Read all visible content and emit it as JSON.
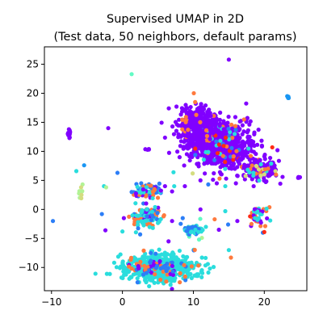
{
  "chart_data": {
    "type": "scatter",
    "title": "Supervised UMAP in 2D",
    "subtitle": "(Test data, 50 neighbors, default params)",
    "xlabel": "",
    "ylabel": "",
    "xlim": [
      -11,
      26
    ],
    "ylim": [
      -14,
      28
    ],
    "xticks": [
      -10,
      0,
      10,
      20
    ],
    "yticks": [
      -10,
      -5,
      0,
      5,
      10,
      15,
      20,
      25
    ],
    "grid": false,
    "legend": "none",
    "colormap": "rainbow",
    "class_colors": [
      "#8000ff",
      "#2c7ef7",
      "#1996f3",
      "#2adddd",
      "#62fbc4",
      "#b2f396",
      "#d4dd80",
      "#ffb360",
      "#ff7a3e",
      "#ff2a15"
    ],
    "clusters": [
      {
        "center": [
          13.5,
          11.5
        ],
        "spread": [
          2.6,
          2.0
        ],
        "angle": -35,
        "count": 900,
        "classes": [
          [
            0,
            0.93
          ],
          [
            8,
            0.02
          ],
          [
            3,
            0.02
          ],
          [
            1,
            0.02
          ],
          [
            9,
            0.01
          ]
        ]
      },
      {
        "center": [
          10.5,
          15.0
        ],
        "spread": [
          1.3,
          1.6
        ],
        "angle": 0,
        "count": 250,
        "classes": [
          [
            0,
            0.97
          ],
          [
            8,
            0.03
          ]
        ]
      },
      {
        "center": [
          19.5,
          6.8
        ],
        "spread": [
          1.2,
          0.8
        ],
        "angle": -10,
        "count": 200,
        "classes": [
          [
            0,
            0.9
          ],
          [
            8,
            0.04
          ],
          [
            6,
            0.03
          ],
          [
            3,
            0.03
          ]
        ]
      },
      {
        "center": [
          5.5,
          -10.0
        ],
        "spread": [
          2.4,
          1.1
        ],
        "angle": 0,
        "count": 700,
        "classes": [
          [
            3,
            0.88
          ],
          [
            1,
            0.05
          ],
          [
            8,
            0.04
          ],
          [
            0,
            0.03
          ]
        ]
      },
      {
        "center": [
          3.3,
          3.2
        ],
        "spread": [
          1.0,
          0.7
        ],
        "angle": 0,
        "count": 90,
        "classes": [
          [
            1,
            0.6
          ],
          [
            0,
            0.1
          ],
          [
            8,
            0.15
          ],
          [
            3,
            0.15
          ]
        ]
      },
      {
        "center": [
          3.4,
          -1.3
        ],
        "spread": [
          0.9,
          0.9
        ],
        "angle": 0,
        "count": 120,
        "classes": [
          [
            8,
            0.45
          ],
          [
            3,
            0.3
          ],
          [
            1,
            0.15
          ],
          [
            0,
            0.1
          ]
        ]
      },
      {
        "center": [
          10.0,
          -3.5
        ],
        "spread": [
          0.7,
          0.5
        ],
        "angle": 0,
        "count": 60,
        "classes": [
          [
            4,
            0.5
          ],
          [
            3,
            0.3
          ],
          [
            1,
            0.2
          ]
        ]
      },
      {
        "center": [
          19.0,
          -1.0
        ],
        "spread": [
          0.8,
          0.8
        ],
        "angle": 0,
        "count": 40,
        "classes": [
          [
            8,
            0.5
          ],
          [
            0,
            0.2
          ],
          [
            3,
            0.3
          ]
        ]
      },
      {
        "center": [
          -7.5,
          13.0
        ],
        "spread": [
          0.1,
          0.5
        ],
        "angle": 0,
        "count": 14,
        "classes": [
          [
            0,
            1.0
          ]
        ]
      },
      {
        "center": [
          23.3,
          19.3
        ],
        "spread": [
          0.1,
          0.1
        ],
        "angle": 0,
        "count": 5,
        "classes": [
          [
            2,
            1.0
          ]
        ]
      },
      {
        "center": [
          24.8,
          5.5
        ],
        "spread": [
          0.1,
          0.1
        ],
        "angle": 0,
        "count": 4,
        "classes": [
          [
            0,
            1.0
          ]
        ]
      },
      {
        "center": [
          3.5,
          10.4
        ],
        "spread": [
          0.2,
          0.1
        ],
        "angle": 0,
        "count": 4,
        "classes": [
          [
            0,
            1.0
          ]
        ]
      },
      {
        "center": [
          -6.0,
          2.8
        ],
        "spread": [
          0.3,
          0.5
        ],
        "angle": 0,
        "count": 8,
        "classes": [
          [
            5,
            0.6
          ],
          [
            6,
            0.4
          ]
        ]
      }
    ],
    "points": [
      [
        15.0,
        25.8,
        0
      ],
      [
        1.3,
        23.3,
        4
      ],
      [
        -2.0,
        14.0,
        0
      ],
      [
        -9.8,
        -2.0,
        1
      ],
      [
        -5.4,
        7.6,
        2
      ],
      [
        -6.5,
        6.6,
        3
      ],
      [
        -0.7,
        6.3,
        1
      ],
      [
        7.2,
        6.4,
        3
      ],
      [
        -2.6,
        4.0,
        3
      ],
      [
        -2.3,
        3.8,
        5
      ],
      [
        6.0,
        4.0,
        0
      ],
      [
        7.3,
        4.0,
        3
      ],
      [
        8.8,
        4.0,
        0
      ],
      [
        9.9,
        6.2,
        6
      ],
      [
        1.3,
        3.0,
        1
      ],
      [
        0.2,
        -1.5,
        0
      ],
      [
        -2.9,
        -0.8,
        1
      ],
      [
        -2.4,
        -3.6,
        0
      ],
      [
        0.0,
        -3.8,
        3
      ],
      [
        5.0,
        2.0,
        8
      ],
      [
        7.0,
        3.1,
        0
      ],
      [
        11.0,
        5.0,
        0
      ],
      [
        12.1,
        4.3,
        1
      ],
      [
        13.3,
        4.5,
        0
      ],
      [
        14.5,
        4.0,
        3
      ],
      [
        16.0,
        4.5,
        0
      ],
      [
        18.5,
        4.0,
        0
      ],
      [
        19.5,
        5.8,
        6
      ],
      [
        8.5,
        -1.5,
        1
      ],
      [
        7.0,
        -2.0,
        0
      ],
      [
        5.8,
        -1.2,
        8
      ],
      [
        11.0,
        0.0,
        0
      ],
      [
        14.5,
        -0.3,
        3
      ],
      [
        13.0,
        -1.7,
        8
      ],
      [
        16.2,
        -2.0,
        0
      ],
      [
        18.0,
        -1.2,
        9
      ],
      [
        18.2,
        -2.5,
        8
      ],
      [
        13.6,
        -3.5,
        0
      ],
      [
        11.2,
        -4.9,
        5
      ],
      [
        15.0,
        -7.0,
        3
      ],
      [
        15.3,
        -8.3,
        8
      ],
      [
        19.8,
        -4.0,
        1
      ],
      [
        20.0,
        -3.9,
        9
      ],
      [
        4.0,
        -7.5,
        1
      ],
      [
        3.0,
        -7.1,
        8
      ],
      [
        6.5,
        -5.5,
        0
      ],
      [
        10.8,
        -5.2,
        4
      ],
      [
        14.9,
        -2.6,
        1
      ],
      [
        2.5,
        -4.3,
        1
      ],
      [
        4.6,
        0.4,
        3
      ]
    ]
  }
}
